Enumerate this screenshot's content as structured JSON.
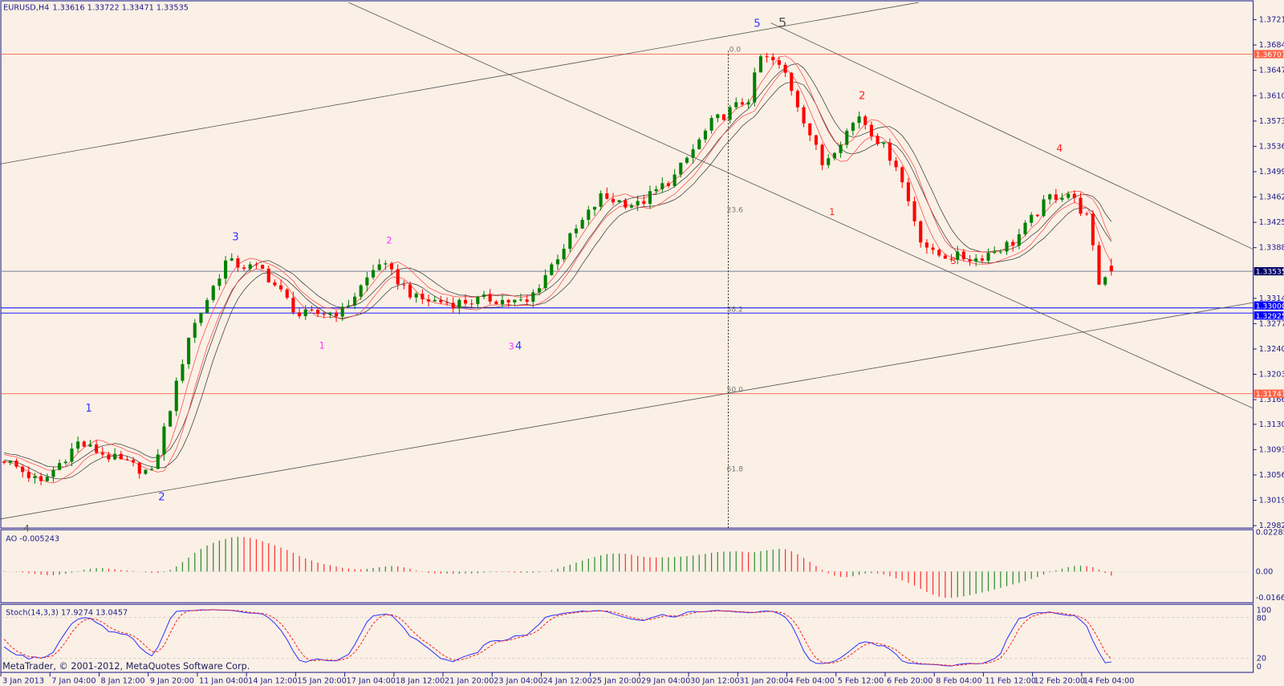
{
  "header": {
    "symbol": "EURUSD,H4",
    "ohlc": "1.33616 1.33722 1.33471 1.33535"
  },
  "ao_panel": {
    "label": "AO -0.005243",
    "scale": [
      "0.022857",
      "0.00",
      "-0.01665"
    ]
  },
  "stoch_panel": {
    "label": "Stoch(14,3,3) 17.9274 13.0457",
    "scale": [
      "100",
      "80",
      "20",
      "0"
    ]
  },
  "copyright": "MetaTrader, © 2001-2012, MetaQuotes Software Corp.",
  "price_axis": [
    "1.37210",
    "1.36840",
    "1.36470",
    "1.36100",
    "1.35730",
    "1.35360",
    "1.34990",
    "1.34620",
    "1.34250",
    "1.33880",
    "1.33140",
    "1.32770",
    "1.32400",
    "1.32030",
    "1.31660",
    "1.31300",
    "1.30930",
    "1.30560",
    "1.30190",
    "1.29820"
  ],
  "price_markers": [
    {
      "value": "1.36707",
      "price": 1.36707,
      "color": "#ff6347"
    },
    {
      "value": "1.33535",
      "price": 1.33535,
      "color": "#000066"
    },
    {
      "value": "1.33000",
      "price": 1.33,
      "color": "#0000ff"
    },
    {
      "value": "1.32925",
      "price": 1.32925,
      "color": "#0000ff"
    },
    {
      "value": "1.31747",
      "price": 1.31747,
      "color": "#ff6347"
    }
  ],
  "time_axis": [
    "3 Jan 2013",
    "7 Jan 04:00",
    "8 Jan 12:00",
    "9 Jan 20:00",
    "11 Jan 04:00",
    "14 Jan 12:00",
    "15 Jan 20:00",
    "17 Jan 04:00",
    "18 Jan 12:00",
    "21 Jan 20:00",
    "23 Jan 04:00",
    "24 Jan 12:00",
    "25 Jan 20:00",
    "29 Jan 04:00",
    "30 Jan 12:00",
    "31 Jan 20:00",
    "4 Feb 04:00",
    "5 Feb 12:00",
    "6 Feb 20:00",
    "8 Feb 04:00",
    "11 Feb 12:00",
    "12 Feb 20:00",
    "14 Feb 04:00"
  ],
  "fibonacci": [
    "0.0",
    "23.6",
    "38.2",
    "50.0",
    "61.8"
  ],
  "waves": [
    {
      "text": "5",
      "color": "#3333ff"
    },
    {
      "text": "5",
      "color": "#555555"
    },
    {
      "text": "1",
      "color": "#ff2222"
    },
    {
      "text": "2",
      "color": "#ff2222"
    },
    {
      "text": "3",
      "color": "#ff2222"
    },
    {
      "text": "4",
      "color": "#ff2222"
    },
    {
      "text": "1",
      "color": "#3333ff"
    },
    {
      "text": "2",
      "color": "#3333ff"
    },
    {
      "text": "3",
      "color": "#3333ff"
    },
    {
      "text": "4",
      "color": "#3333ff"
    },
    {
      "text": "3",
      "color": "#ff33ff"
    },
    {
      "text": "1",
      "color": "#ff33ff"
    },
    {
      "text": "2",
      "color": "#ff33ff"
    },
    {
      "text": "4",
      "color": "#555555"
    }
  ],
  "colors": {
    "bull": "#008000",
    "bear": "#ff0000",
    "background": "#faf0e6",
    "axis": "#1c1c8c"
  },
  "chart_data": {
    "type": "candlestick",
    "symbol": "EURUSD",
    "timeframe": "H4",
    "ylim": [
      1.2982,
      1.3721
    ],
    "last": {
      "open": 1.33616,
      "high": 1.33722,
      "low": 1.33471,
      "close": 1.33535
    },
    "close_path": [
      {
        "bar": 0,
        "price": 1.3079
      },
      {
        "bar": 6,
        "price": 1.3043
      },
      {
        "bar": 12,
        "price": 1.3103
      },
      {
        "bar": 18,
        "price": 1.3079
      },
      {
        "bar": 24,
        "price": 1.3058
      },
      {
        "bar": 28,
        "price": 1.3187
      },
      {
        "bar": 30,
        "price": 1.3259
      },
      {
        "bar": 36,
        "price": 1.3367
      },
      {
        "bar": 42,
        "price": 1.3355
      },
      {
        "bar": 48,
        "price": 1.3289
      },
      {
        "bar": 55,
        "price": 1.3295
      },
      {
        "bar": 61,
        "price": 1.3367
      },
      {
        "bar": 67,
        "price": 1.3313
      },
      {
        "bar": 73,
        "price": 1.3307
      },
      {
        "bar": 79,
        "price": 1.3313
      },
      {
        "bar": 85,
        "price": 1.3307
      },
      {
        "bar": 91,
        "price": 1.339
      },
      {
        "bar": 97,
        "price": 1.3462
      },
      {
        "bar": 103,
        "price": 1.345
      },
      {
        "bar": 109,
        "price": 1.3492
      },
      {
        "bar": 115,
        "price": 1.357
      },
      {
        "bar": 121,
        "price": 1.3606
      },
      {
        "bar": 123,
        "price": 1.3666
      },
      {
        "bar": 125,
        "price": 1.366
      },
      {
        "bar": 127,
        "price": 1.3642
      },
      {
        "bar": 133,
        "price": 1.351
      },
      {
        "bar": 139,
        "price": 1.3582
      },
      {
        "bar": 145,
        "price": 1.351
      },
      {
        "bar": 149,
        "price": 1.3402
      },
      {
        "bar": 151,
        "price": 1.3378
      },
      {
        "bar": 158,
        "price": 1.3372
      },
      {
        "bar": 164,
        "price": 1.3396
      },
      {
        "bar": 170,
        "price": 1.3462
      },
      {
        "bar": 173,
        "price": 1.3468
      },
      {
        "bar": 176,
        "price": 1.3432
      },
      {
        "bar": 178,
        "price": 1.3337
      },
      {
        "bar": 180,
        "price": 1.33535
      }
    ]
  }
}
